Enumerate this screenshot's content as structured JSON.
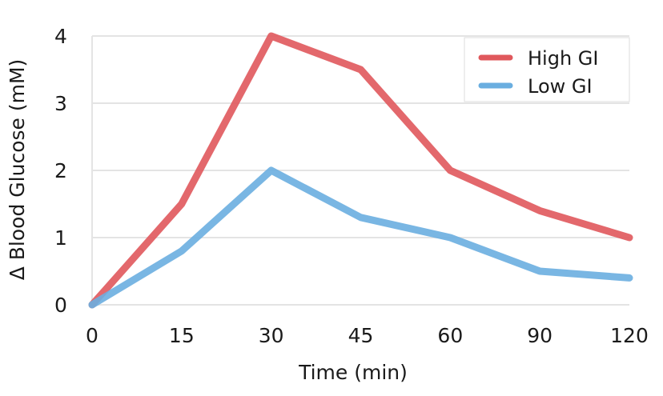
{
  "chart_data": {
    "type": "line",
    "categories": [
      "0",
      "15",
      "30",
      "45",
      "60",
      "90",
      "120"
    ],
    "xlabel": "Time (min)",
    "ylabel": "Δ Blood Glucose (mM)",
    "ylim": [
      0,
      4
    ],
    "yticks": [
      "0",
      "1",
      "2",
      "3",
      "4"
    ],
    "grid": true,
    "legend_position": "top-right",
    "series": [
      {
        "name": "High GI",
        "color": "#e0585c",
        "values": [
          0,
          1.5,
          4.0,
          3.5,
          2.0,
          1.4,
          1.0
        ]
      },
      {
        "name": "Low GI",
        "color": "#6aaee0",
        "values": [
          0,
          0.8,
          2.0,
          1.3,
          1.0,
          0.5,
          0.4
        ]
      }
    ]
  }
}
